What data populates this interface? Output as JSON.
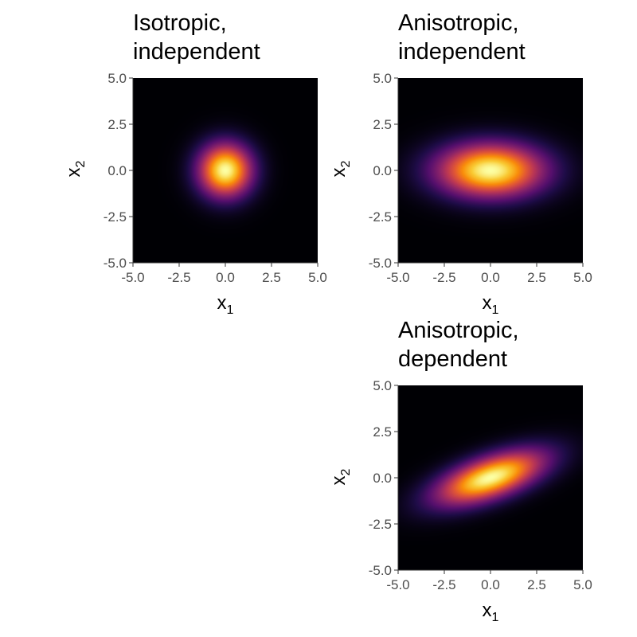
{
  "chart_data": [
    {
      "type": "heatmap",
      "title": [
        "Isotropic,",
        "independent"
      ],
      "xlabel": "x",
      "xlabel_sub": "1",
      "ylabel": "x",
      "ylabel_sub": "2",
      "xlim": [
        -5.0,
        5.0
      ],
      "ylim": [
        -5.0,
        5.0
      ],
      "x_ticks": [
        "-5.0",
        "-2.5",
        "0.0",
        "2.5",
        "5.0"
      ],
      "y_ticks": [
        "-5.0",
        "-2.5",
        "0.0",
        "2.5",
        "5.0"
      ],
      "distribution": {
        "mean": [
          0,
          0
        ],
        "sd": [
          1,
          1
        ],
        "rho": 0
      },
      "colormap": "inferno",
      "grid": false
    },
    {
      "type": "heatmap",
      "title": [
        "Anisotropic,",
        "independent"
      ],
      "xlabel": "x",
      "xlabel_sub": "1",
      "ylabel": "x",
      "ylabel_sub": "2",
      "xlim": [
        -5.0,
        5.0
      ],
      "ylim": [
        -5.0,
        5.0
      ],
      "x_ticks": [
        "-5.0",
        "-2.5",
        "0.0",
        "2.5",
        "5.0"
      ],
      "y_ticks": [
        "-5.0",
        "-2.5",
        "0.0",
        "2.5",
        "5.0"
      ],
      "distribution": {
        "mean": [
          0,
          0
        ],
        "sd": [
          2,
          1
        ],
        "rho": 0
      },
      "colormap": "inferno",
      "grid": false
    },
    {
      "type": "heatmap",
      "title": [
        "Anisotropic,",
        "dependent"
      ],
      "xlabel": "x",
      "xlabel_sub": "1",
      "ylabel": "x",
      "ylabel_sub": "2",
      "xlim": [
        -5.0,
        5.0
      ],
      "ylim": [
        -5.0,
        5.0
      ],
      "x_ticks": [
        "-5.0",
        "-2.5",
        "0.0",
        "2.5",
        "5.0"
      ],
      "y_ticks": [
        "-5.0",
        "-2.5",
        "0.0",
        "2.5",
        "5.0"
      ],
      "distribution": {
        "mean": [
          0,
          0
        ],
        "sd": [
          2,
          1
        ],
        "rho": 0.6
      },
      "colormap": "inferno",
      "grid": false
    }
  ]
}
